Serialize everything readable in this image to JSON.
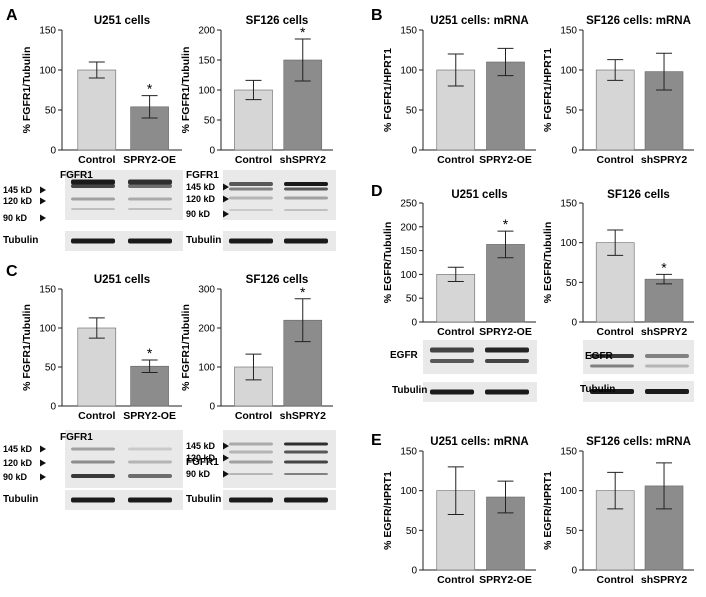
{
  "panels": {
    "A": "A",
    "B": "B",
    "C": "C",
    "D": "D",
    "E": "E"
  },
  "colors": {
    "control": "#d6d6d6",
    "treated": "#8c8c8c",
    "axis": "#222222",
    "blot_bg": "#e9e9e9",
    "band": "#1a1a1a"
  },
  "chart_data": [
    {
      "id": "A1",
      "type": "bar",
      "title": "U251 cells",
      "ylabel": "% FGFR1/Tubulin",
      "categories": [
        "Control",
        "SPRY2-OE"
      ],
      "values": [
        100,
        54
      ],
      "errors": [
        10,
        14
      ],
      "ylim": [
        0,
        150
      ],
      "yticks": [
        0,
        50,
        100,
        150
      ],
      "significance": [
        "",
        "*"
      ]
    },
    {
      "id": "A2",
      "type": "bar",
      "title": "SF126 cells",
      "ylabel": "% FGFR1/Tubulin",
      "categories": [
        "Control",
        "shSPRY2"
      ],
      "values": [
        100,
        150
      ],
      "errors": [
        16,
        35
      ],
      "ylim": [
        0,
        200
      ],
      "yticks": [
        0,
        50,
        100,
        150,
        200
      ],
      "significance": [
        "",
        "*"
      ]
    },
    {
      "id": "B1",
      "type": "bar",
      "title": "U251 cells: mRNA",
      "ylabel": "% FGFR1/HPRT1",
      "categories": [
        "Control",
        "SPRY2-OE"
      ],
      "values": [
        100,
        110
      ],
      "errors": [
        20,
        17
      ],
      "ylim": [
        0,
        150
      ],
      "yticks": [
        0,
        50,
        100,
        150
      ],
      "significance": [
        "",
        ""
      ]
    },
    {
      "id": "B2",
      "type": "bar",
      "title": "SF126 cells: mRNA",
      "ylabel": "% FGFR1/HPRT1",
      "categories": [
        "Control",
        "shSPRY2"
      ],
      "values": [
        100,
        98
      ],
      "errors": [
        13,
        23
      ],
      "ylim": [
        0,
        150
      ],
      "yticks": [
        0,
        50,
        100,
        150
      ],
      "significance": [
        "",
        ""
      ]
    },
    {
      "id": "C1",
      "type": "bar",
      "title": "U251 cells",
      "ylabel": "% FGFR1/Tubulin",
      "categories": [
        "Control",
        "SPRY2-OE"
      ],
      "values": [
        100,
        51
      ],
      "errors": [
        13,
        8
      ],
      "ylim": [
        0,
        150
      ],
      "yticks": [
        0,
        50,
        100,
        150
      ],
      "significance": [
        "",
        "*"
      ]
    },
    {
      "id": "C2",
      "type": "bar",
      "title": "SF126 cells",
      "ylabel": "% FGFR1/Tubulin",
      "categories": [
        "Control",
        "shSPRY2"
      ],
      "values": [
        100,
        220
      ],
      "errors": [
        33,
        55
      ],
      "ylim": [
        0,
        300
      ],
      "yticks": [
        0,
        100,
        200,
        300
      ],
      "significance": [
        "",
        "*"
      ]
    },
    {
      "id": "D1",
      "type": "bar",
      "title": "U251 cells",
      "ylabel": "% EGFR/Tubulin",
      "categories": [
        "Control",
        "SPRY2-OE"
      ],
      "values": [
        100,
        163
      ],
      "errors": [
        15,
        28
      ],
      "ylim": [
        0,
        250
      ],
      "yticks": [
        0,
        50,
        100,
        150,
        200,
        250
      ],
      "significance": [
        "",
        "*"
      ]
    },
    {
      "id": "D2",
      "type": "bar",
      "title": "SF126 cells",
      "ylabel": "% EGFR/Tubulin",
      "categories": [
        "Control",
        "shSPRY2"
      ],
      "values": [
        100,
        54
      ],
      "errors": [
        16,
        6
      ],
      "ylim": [
        0,
        150
      ],
      "yticks": [
        0,
        50,
        100,
        150
      ],
      "significance": [
        "",
        "*"
      ]
    },
    {
      "id": "E1",
      "type": "bar",
      "title": "U251 cells: mRNA",
      "ylabel": "% EGFR/HPRT1",
      "categories": [
        "Control",
        "SPRY2-OE"
      ],
      "values": [
        100,
        92
      ],
      "errors": [
        30,
        20
      ],
      "ylim": [
        0,
        150
      ],
      "yticks": [
        0,
        50,
        100,
        150
      ],
      "significance": [
        "",
        ""
      ]
    },
    {
      "id": "E2",
      "type": "bar",
      "title": "SF126 cells: mRNA",
      "ylabel": "% EGFR/HPRT1",
      "categories": [
        "Control",
        "shSPRY2"
      ],
      "values": [
        100,
        106
      ],
      "errors": [
        23,
        29
      ],
      "ylim": [
        0,
        150
      ],
      "yticks": [
        0,
        50,
        100,
        150
      ],
      "significance": [
        "",
        ""
      ]
    }
  ],
  "blots": [
    {
      "id": "A1-blot",
      "protein": "FGFR1",
      "loading": "Tubulin",
      "markers": [
        "145 kD",
        "120 kD",
        "90 kD"
      ]
    },
    {
      "id": "A2-blot",
      "protein": "FGFR1",
      "loading": "Tubulin",
      "markers": [
        "145 kD",
        "120 kD",
        "90 kD"
      ]
    },
    {
      "id": "C1-blot",
      "protein": "FGFR1",
      "loading": "Tubulin",
      "markers": [
        "145 kD",
        "120 kD",
        "90 kD"
      ]
    },
    {
      "id": "C2-blot",
      "protein": "FGFR1",
      "loading": "Tubulin",
      "markers": [
        "145 kD",
        "120 kD",
        "90 kD"
      ]
    },
    {
      "id": "D1-blot",
      "protein": "EGFR",
      "loading": "Tubulin",
      "markers": []
    },
    {
      "id": "D2-blot",
      "protein": "EGFR",
      "loading": "Tubulin",
      "markers": []
    }
  ]
}
